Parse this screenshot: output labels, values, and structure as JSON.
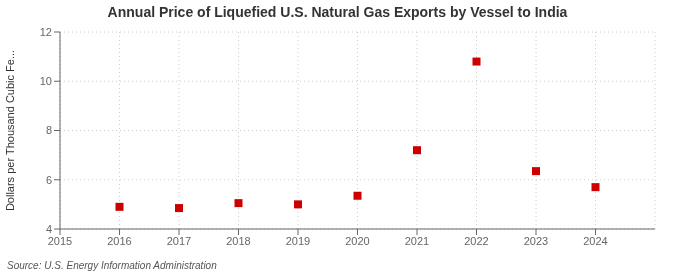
{
  "chart_data": {
    "type": "scatter",
    "title": "Annual Price of Liquefied U.S. Natural Gas Exports by Vessel to India",
    "ylabel": "Dollars per Thousand Cubic Fe...",
    "annotations": [
      "Source: U.S. Energy Information Administration"
    ],
    "x": [
      2016,
      2017,
      2018,
      2019,
      2020,
      2021,
      2022,
      2023,
      2024
    ],
    "values": [
      4.9,
      4.85,
      5.05,
      5.0,
      5.35,
      7.2,
      10.8,
      6.35,
      5.7
    ],
    "xlim": [
      2015,
      2025
    ],
    "ylim": [
      4,
      12
    ],
    "xticks": [
      2015,
      2016,
      2017,
      2018,
      2019,
      2020,
      2021,
      2022,
      2023,
      2024
    ],
    "yticks": [
      4,
      6,
      8,
      10,
      12
    ],
    "color": "#cc0000",
    "marker": "square",
    "grid": true
  }
}
